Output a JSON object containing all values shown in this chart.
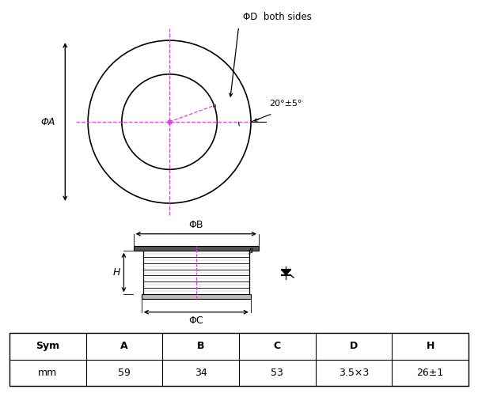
{
  "bg_color": "#ffffff",
  "phi_a_label": "ΦA",
  "phi_b_label": "ΦB",
  "phi_c_label": "ΦC",
  "phi_d_label": "ΦD  both sides",
  "angle_label": "20°±5°",
  "h_label": "H",
  "table_headers": [
    "Sym",
    "A",
    "B",
    "C",
    "D",
    "H"
  ],
  "table_row1": [
    "mm",
    "59",
    "34",
    "53",
    "3.5×3",
    "26±1"
  ],
  "cross_color": "#dd44dd",
  "line_color": "#000000"
}
